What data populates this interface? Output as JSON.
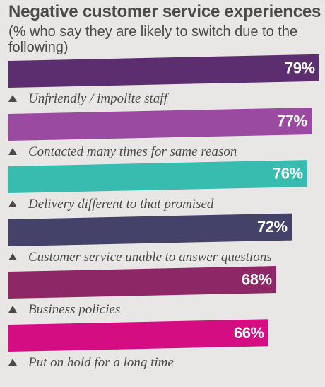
{
  "chart_data": {
    "type": "bar",
    "orientation": "horizontal",
    "title": "Negative customer service experiences",
    "subtitle": "(% who say they are likely to switch due to the following)",
    "categories": [
      "Unfriendly / impolite staff",
      "Contacted many times for same reason",
      "Delivery different to that promised",
      "Customer service unable to answer questions",
      "Business policies",
      "Put on hold for a long time"
    ],
    "values": [
      79,
      77,
      76,
      72,
      68,
      66
    ],
    "value_labels": [
      "79%",
      "77%",
      "76%",
      "72%",
      "68%",
      "66%"
    ],
    "colors": [
      "#5c2d6f",
      "#9a4aa0",
      "#39bcb0",
      "#45426a",
      "#8d2766",
      "#d40d83"
    ],
    "xlim": [
      0,
      79
    ],
    "grid": false,
    "legend": "none"
  },
  "icons": {
    "bullet": "triangle-up-icon"
  }
}
